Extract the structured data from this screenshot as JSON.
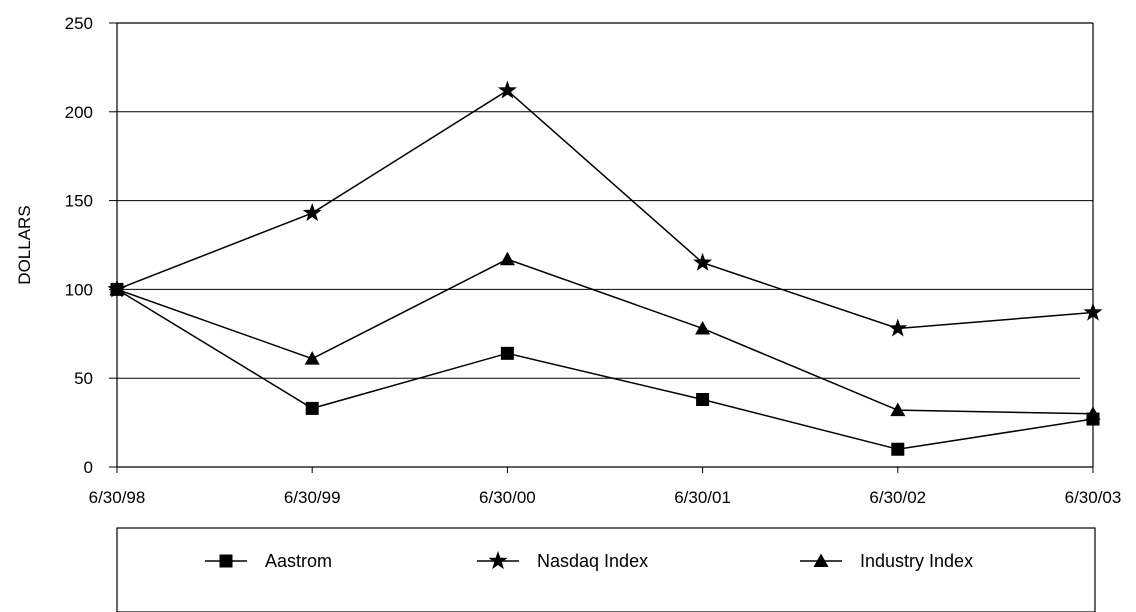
{
  "chart_data": {
    "type": "line",
    "title": "",
    "xlabel": "",
    "ylabel": "DOLLARS",
    "categories": [
      "6/30/98",
      "6/30/99",
      "6/30/00",
      "6/30/01",
      "6/30/02",
      "6/30/03"
    ],
    "ylim": [
      0,
      250
    ],
    "yticks": [
      0,
      50,
      100,
      150,
      200,
      250
    ],
    "grid": true,
    "legend_position": "bottom",
    "series": [
      {
        "name": "Aastrom",
        "marker": "square",
        "values": [
          100,
          33,
          64,
          38,
          10,
          27
        ]
      },
      {
        "name": "Nasdaq Index",
        "marker": "star",
        "values": [
          100,
          143,
          212,
          115,
          78,
          87
        ]
      },
      {
        "name": "Industry Index",
        "marker": "triangle",
        "values": [
          100,
          61,
          117,
          78,
          32,
          30
        ]
      }
    ],
    "colors": {
      "line": "#000000",
      "grid": "#000000"
    }
  }
}
